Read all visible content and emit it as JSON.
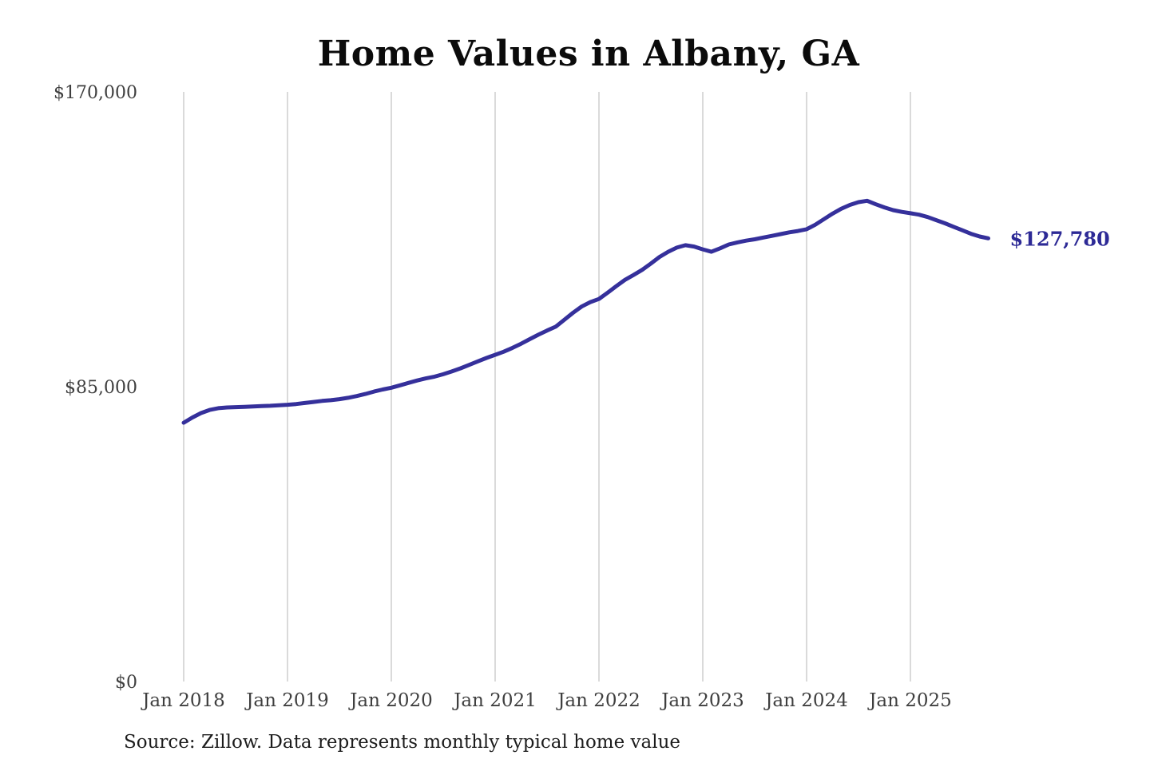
{
  "chart": {
    "title": "Home Values in Albany, GA",
    "source_note": "Source: Zillow. Data represents monthly typical home value",
    "end_label": "$127,780",
    "colors": {
      "line": "#35309b",
      "end_label": "#2d2a96",
      "grid": "#c7c7c7",
      "tick_text": "#3f3f3f",
      "title_text": "#0b0b0b",
      "source_text": "#1c1c1c"
    }
  },
  "chart_data": {
    "type": "line",
    "title": "Home Values in Albany, GA",
    "series_name": "Typical home value (monthly)",
    "x_unit": "month",
    "x": [
      "2018-01",
      "2018-02",
      "2018-03",
      "2018-04",
      "2018-05",
      "2018-06",
      "2018-07",
      "2018-08",
      "2018-09",
      "2018-10",
      "2018-11",
      "2018-12",
      "2019-01",
      "2019-02",
      "2019-03",
      "2019-04",
      "2019-05",
      "2019-06",
      "2019-07",
      "2019-08",
      "2019-09",
      "2019-10",
      "2019-11",
      "2019-12",
      "2020-01",
      "2020-02",
      "2020-03",
      "2020-04",
      "2020-05",
      "2020-06",
      "2020-07",
      "2020-08",
      "2020-09",
      "2020-10",
      "2020-11",
      "2020-12",
      "2021-01",
      "2021-02",
      "2021-03",
      "2021-04",
      "2021-05",
      "2021-06",
      "2021-07",
      "2021-08",
      "2021-09",
      "2021-10",
      "2021-11",
      "2021-12",
      "2022-01",
      "2022-02",
      "2022-03",
      "2022-04",
      "2022-05",
      "2022-06",
      "2022-07",
      "2022-08",
      "2022-09",
      "2022-10",
      "2022-11",
      "2022-12",
      "2023-01",
      "2023-02",
      "2023-03",
      "2023-04",
      "2023-05",
      "2023-06",
      "2023-07",
      "2023-08",
      "2023-09",
      "2023-10",
      "2023-11",
      "2023-12",
      "2024-01",
      "2024-02",
      "2024-03",
      "2024-04",
      "2024-05",
      "2024-06",
      "2024-07",
      "2024-08",
      "2024-09",
      "2024-10",
      "2024-11",
      "2024-12",
      "2025-01",
      "2025-02",
      "2025-03",
      "2025-04",
      "2025-05",
      "2025-06",
      "2025-07",
      "2025-08",
      "2025-09",
      "2025-10"
    ],
    "values": [
      74600,
      76100,
      77400,
      78300,
      78800,
      79000,
      79100,
      79200,
      79300,
      79400,
      79500,
      79650,
      79800,
      80000,
      80300,
      80600,
      80900,
      81100,
      81400,
      81800,
      82300,
      82900,
      83600,
      84200,
      84700,
      85400,
      86100,
      86800,
      87400,
      87900,
      88600,
      89400,
      90300,
      91300,
      92300,
      93300,
      94200,
      95100,
      96200,
      97400,
      98700,
      100000,
      101200,
      102300,
      104300,
      106300,
      108100,
      109400,
      110300,
      112100,
      114000,
      115800,
      117200,
      118700,
      120500,
      122400,
      123900,
      125100,
      125800,
      125400,
      124600,
      123900,
      124900,
      126000,
      126600,
      127100,
      127500,
      128000,
      128500,
      129000,
      129500,
      129900,
      130400,
      131700,
      133300,
      134900,
      136300,
      137400,
      138200,
      138600,
      137600,
      136700,
      135900,
      135400,
      135000,
      134600,
      133900,
      133000,
      132100,
      131100,
      130100,
      129100,
      128300,
      127780
    ],
    "final_value": 127780,
    "final_value_label": "$127,780",
    "x_tick_labels": [
      "Jan 2018",
      "Jan 2019",
      "Jan 2020",
      "Jan 2021",
      "Jan 2022",
      "Jan 2023",
      "Jan 2024",
      "Jan 2025"
    ],
    "x_tick_month_indices": [
      0,
      12,
      24,
      36,
      48,
      60,
      72,
      84
    ],
    "y_ticks": [
      {
        "value": 0,
        "label": "$0"
      },
      {
        "value": 85000,
        "label": "$85,000"
      },
      {
        "value": 170000,
        "label": "$170,000"
      }
    ],
    "ylim": [
      0,
      170000
    ],
    "xlabel": "",
    "ylabel": "",
    "grid": "vertical-only",
    "legend": "none"
  }
}
